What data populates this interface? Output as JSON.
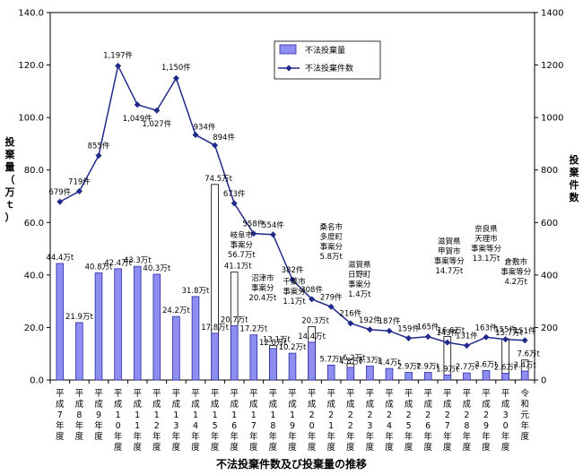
{
  "chart_data": {
    "type": "bar+line",
    "title": "不法投棄件数及び投棄量の推移",
    "ylabel_left": "投棄量（万ｔ）",
    "ylabel_right": "投棄件数",
    "ylim_left": [
      0,
      140
    ],
    "ylim_right": [
      0,
      1400
    ],
    "yticks_left": [
      "0.0",
      "20.0",
      "40.0",
      "60.0",
      "80.0",
      "100.0",
      "120.0",
      "140.0"
    ],
    "yticks_right": [
      "0",
      "200",
      "400",
      "600",
      "800",
      "1000",
      "1200",
      "1400"
    ],
    "categories": [
      "平成7年度",
      "平成8年度",
      "平成9年度",
      "平成10年度",
      "平成11年度",
      "平成12年度",
      "平成13年度",
      "平成14年度",
      "平成15年度",
      "平成16年度",
      "平成17年度",
      "平成18年度",
      "平成19年度",
      "平成20年度",
      "平成21年度",
      "平成22年度",
      "平成23年度",
      "平成24年度",
      "平成25年度",
      "平成26年度",
      "平成27年度",
      "平成28年度",
      "平成29年度",
      "平成30年度",
      "令和元年度"
    ],
    "legend": {
      "bar": "不法投棄量",
      "line": "不法投棄件数"
    },
    "bars": {
      "name": "不法投棄量",
      "values": [
        44.4,
        21.9,
        40.8,
        42.4,
        43.3,
        40.3,
        24.2,
        31.8,
        17.8,
        20.7,
        17.2,
        12.0,
        10.2,
        14.4,
        5.7,
        4.8,
        5.3,
        4.4,
        2.9,
        2.9,
        1.9,
        2.7,
        3.6,
        2.6,
        3.4
      ],
      "labels": [
        "44.4万t",
        "21.9万t",
        "40.8万t",
        "42.4万t",
        "43.3万t",
        "40.3万t",
        "24.2万t",
        "31.8万t",
        "17.8万t",
        "20.7万t",
        "17.2万t",
        "12.0万t",
        "10.2万t",
        "14.4万t",
        "5.7万t",
        "4.8万t",
        "5.3万t",
        "4.4万t",
        "2.9万t",
        "2.9万t",
        "1.9万t",
        "2.7万t",
        "3.6万t",
        "2.6万t",
        "3.4万t"
      ]
    },
    "large_cases": [
      {
        "category": "平成15年度",
        "total": 74.5,
        "total_label": "74.5万t",
        "case": ""
      },
      {
        "category": "平成16年度",
        "total": 41.1,
        "total_label": "41.1万t",
        "case": "岐阜市事案分56.7万t"
      },
      {
        "category": "平成17年度",
        "total": 0,
        "total_label": "",
        "case": ""
      },
      {
        "category": "平成18年度",
        "total": 13.1,
        "total_label": "13.1万t",
        "case": ""
      },
      {
        "category": "平成20年度",
        "total": 20.3,
        "total_label": "20.3万t",
        "case": ""
      },
      {
        "category": "平成22年度",
        "total": 6.2,
        "total_label": "6.2万t",
        "case": ""
      },
      {
        "category": "平成27年度",
        "total": 16.6,
        "total_label": "16.6万t",
        "case": ""
      },
      {
        "category": "平成30年度",
        "total": 15.7,
        "total_label": "15.7万t",
        "case": ""
      },
      {
        "category": "令和元年度",
        "total": 7.6,
        "total_label": "7.6万t",
        "case": ""
      }
    ],
    "annotations": [
      {
        "category": "平成16年度",
        "lines": [
          "岐阜市",
          "事案分",
          "56.7万t"
        ]
      },
      {
        "category": "平成17年度",
        "lines": [
          "沼津市",
          "事案分",
          "20.4万t"
        ]
      },
      {
        "category": "平成19年度",
        "lines": [
          "千葉市",
          "事案分",
          "1.1万t"
        ]
      },
      {
        "category": "平成21年度",
        "lines": [
          "桑名市",
          "多度町",
          "事案分",
          "5.8万t"
        ]
      },
      {
        "category": "平成22年度",
        "lines": [
          "滋賀県",
          "日野町",
          "事案分",
          "1.4万t"
        ]
      },
      {
        "category": "平成27年度",
        "lines": [
          "滋賀県",
          "甲賀市",
          "事案等分",
          "14.7万t"
        ]
      },
      {
        "category": "平成29年度",
        "lines": [
          "奈良県",
          "天理市",
          "事案等分",
          "13.1万t"
        ]
      },
      {
        "category": "令和元年度",
        "lines": [
          "倉敷市",
          "事案等分",
          "4.2万t"
        ]
      }
    ],
    "line": {
      "name": "不法投棄件数",
      "values": [
        679,
        719,
        855,
        1197,
        1049,
        1027,
        1150,
        934,
        894,
        673,
        558,
        554,
        382,
        308,
        279,
        216,
        192,
        187,
        159,
        165,
        143,
        131,
        163,
        155,
        151
      ],
      "labels": [
        "679件",
        "719件",
        "855件",
        "1,197件",
        "1,049件",
        "1,027件",
        "1,150件",
        "934件",
        "894件",
        "673件",
        "558件",
        "554件",
        "382件",
        "308件",
        "279件",
        "216件",
        "192件",
        "187件",
        "159件",
        "165件",
        "143件",
        "131件",
        "163件",
        "155件",
        "151件"
      ]
    }
  },
  "ui": {
    "title": "不法投棄件数及び投棄量の推移",
    "legend_bar": "不法投棄量",
    "legend_line": "不法投棄件数"
  }
}
